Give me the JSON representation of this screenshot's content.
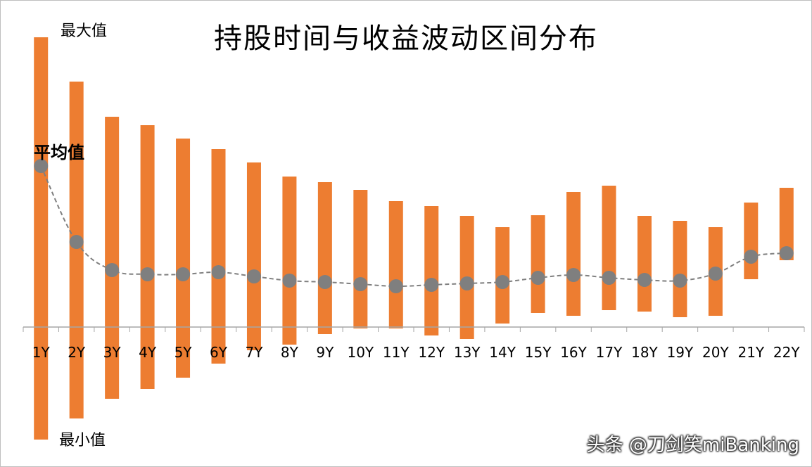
{
  "chart_data": {
    "type": "bar",
    "title": "持股时间与收益波动区间分布",
    "categories": [
      "1Y",
      "2Y",
      "3Y",
      "4Y",
      "5Y",
      "6Y",
      "7Y",
      "8Y",
      "9Y",
      "10Y",
      "11Y",
      "12Y",
      "13Y",
      "14Y",
      "15Y",
      "16Y",
      "17Y",
      "18Y",
      "19Y",
      "20Y",
      "21Y",
      "22Y"
    ],
    "series": [
      {
        "name": "最大值",
        "values": [
          412,
          349,
          299,
          287,
          268,
          253,
          234,
          214,
          206,
          195,
          179,
          172,
          158,
          142,
          159,
          192,
          201,
          158,
          151,
          142,
          177,
          198
        ]
      },
      {
        "name": "最小值",
        "values": [
          -160,
          -130,
          -102,
          -88,
          -72,
          -52,
          -33,
          -25,
          -10,
          -2,
          -2,
          -12,
          -17,
          5,
          20,
          16,
          24,
          22,
          14,
          16,
          68,
          95
        ]
      },
      {
        "name": "平均值",
        "values": [
          229,
          121,
          81,
          75,
          75,
          78,
          72,
          66,
          64,
          61,
          58,
          60,
          62,
          64,
          70,
          74,
          70,
          67,
          66,
          76,
          100,
          105
        ]
      }
    ],
    "ylim": [
      -165,
      420
    ],
    "colors": {
      "range_bar": "#ed7d31",
      "average": "#7f7f7f"
    }
  },
  "watermark": "头条 @刀剑笑miBanking"
}
